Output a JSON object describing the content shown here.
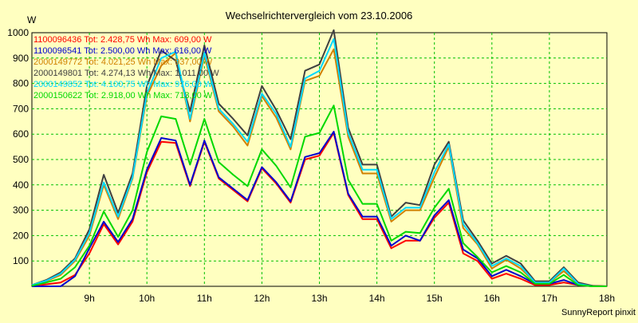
{
  "chart_data": {
    "type": "line",
    "title": "Wechselrichtervergleich vom 23.10.2006",
    "ylabel": "W",
    "xlabel": "",
    "footer": "SunnyReport pinxit",
    "ylim": [
      0,
      1000
    ],
    "yticks": [
      100,
      200,
      300,
      400,
      500,
      600,
      700,
      800,
      900,
      1000
    ],
    "xlim": [
      8,
      18
    ],
    "xticks": [
      9,
      10,
      11,
      12,
      13,
      14,
      15,
      16,
      17,
      18
    ],
    "xtick_labels": [
      "9h",
      "10h",
      "11h",
      "12h",
      "13h",
      "14h",
      "15h",
      "16h",
      "17h",
      "18h"
    ],
    "grid": true,
    "x": [
      8.0,
      8.25,
      8.5,
      8.75,
      9.0,
      9.25,
      9.5,
      9.75,
      10.0,
      10.25,
      10.5,
      10.75,
      11.0,
      11.25,
      11.5,
      11.75,
      12.0,
      12.25,
      12.5,
      12.75,
      13.0,
      13.25,
      13.5,
      13.75,
      14.0,
      14.25,
      14.5,
      14.75,
      15.0,
      15.25,
      15.5,
      15.75,
      16.0,
      16.25,
      16.5,
      16.75,
      17.0,
      17.25,
      17.5,
      17.75,
      18.0
    ],
    "series": [
      {
        "name": "1100096436",
        "legend": "1100096436 Tot: 2.428,75 Wh Max: 609,00 W",
        "color": "#ff0000",
        "values": [
          2,
          8,
          15,
          45,
          130,
          245,
          165,
          255,
          450,
          570,
          565,
          395,
          570,
          425,
          380,
          335,
          465,
          405,
          330,
          500,
          515,
          605,
          360,
          265,
          265,
          150,
          180,
          180,
          270,
          330,
          130,
          100,
          30,
          50,
          30,
          5,
          5,
          15,
          5,
          2,
          0
        ]
      },
      {
        "name": "1100096541",
        "legend": "1100096541 Tot: 2.500,00 Wh Max: 616,00 W",
        "color": "#0000d0",
        "values": [
          0,
          0,
          0,
          40,
          150,
          255,
          175,
          265,
          460,
          585,
          575,
          400,
          575,
          430,
          385,
          340,
          470,
          410,
          335,
          510,
          525,
          610,
          365,
          275,
          275,
          160,
          200,
          180,
          280,
          340,
          145,
          110,
          40,
          65,
          40,
          10,
          10,
          25,
          5,
          0,
          0
        ]
      },
      {
        "name": "2000149772",
        "legend": "2000149772 Tot: 4.021,25 Wh Max: 937,00 W",
        "color": "#d08000",
        "values": [
          5,
          20,
          45,
          100,
          200,
          400,
          265,
          425,
          750,
          870,
          920,
          650,
          910,
          690,
          630,
          555,
          750,
          665,
          540,
          810,
          830,
          935,
          590,
          445,
          445,
          255,
          300,
          300,
          430,
          550,
          230,
          165,
          70,
          105,
          70,
          15,
          15,
          60,
          10,
          0,
          0
        ]
      },
      {
        "name": "2000149801",
        "legend": "2000149801 Tot: 4.274,13 Wh Max: 1.011,00 W",
        "color": "#404040",
        "values": [
          5,
          25,
          55,
          110,
          225,
          440,
          290,
          445,
          790,
          930,
          890,
          690,
          950,
          720,
          660,
          595,
          790,
          695,
          580,
          850,
          875,
          1010,
          625,
          480,
          480,
          275,
          330,
          320,
          480,
          570,
          260,
          180,
          90,
          120,
          90,
          20,
          20,
          75,
          15,
          2,
          0
        ]
      },
      {
        "name": "2000149852",
        "legend": "2000149852 Tot: 4.100,75 Wh Max: 976,00 W",
        "color": "#00d8ff",
        "values": [
          5,
          22,
          50,
          105,
          210,
          410,
          275,
          430,
          760,
          900,
          925,
          660,
          920,
          700,
          640,
          570,
          760,
          680,
          550,
          820,
          850,
          975,
          605,
          460,
          460,
          265,
          310,
          310,
          450,
          560,
          245,
          170,
          80,
          110,
          80,
          15,
          15,
          70,
          10,
          0,
          0
        ]
      },
      {
        "name": "2000150622",
        "legend": "2000150622 Tot: 2.918,00 Wh Max: 713,00 W",
        "color": "#00d800",
        "values": [
          2,
          15,
          30,
          75,
          160,
          295,
          195,
          300,
          530,
          670,
          660,
          480,
          660,
          490,
          440,
          395,
          540,
          475,
          390,
          590,
          605,
          713,
          420,
          325,
          325,
          180,
          215,
          210,
          310,
          385,
          170,
          115,
          55,
          80,
          55,
          10,
          10,
          45,
          5,
          0,
          0
        ]
      }
    ]
  }
}
